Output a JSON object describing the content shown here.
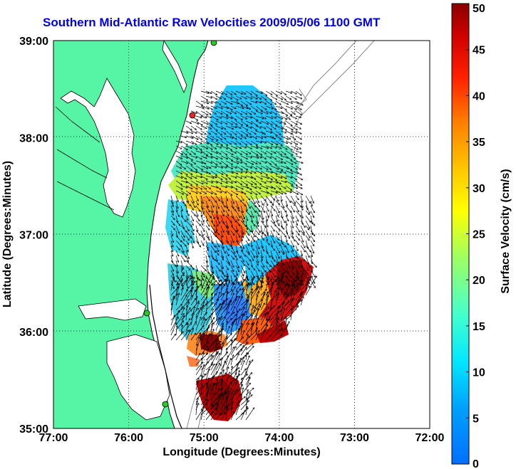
{
  "title": "Southern Mid-Atlantic Raw Velocities 2009/05/06 1100 GMT",
  "map": {
    "xlabel": "Longitude (Degrees:Minutes)",
    "ylabel": "Latitude (Degrees:Minutes)",
    "lon_range": [
      77,
      72
    ],
    "lat_range": [
      35,
      39
    ],
    "x_ticks": [
      "77:00",
      "76:00",
      "75:00",
      "74:00",
      "73:00",
      "72:00"
    ],
    "y_ticks": [
      "35:00",
      "36:00",
      "37:00",
      "38:00",
      "39:00"
    ],
    "colors": {
      "land": "#55f5a5",
      "coast": "#000000",
      "bathymetry": "#8a8a8a",
      "grid": "#000000",
      "site_green": "#22cc22",
      "site_red": "#ee2222"
    }
  },
  "colorbar": {
    "label": "Surface Velocity (cm/s)",
    "ticks": [
      "0",
      "5",
      "10",
      "15",
      "20",
      "25",
      "30",
      "35",
      "40",
      "45",
      "50"
    ],
    "min": 0,
    "max": 50
  }
}
